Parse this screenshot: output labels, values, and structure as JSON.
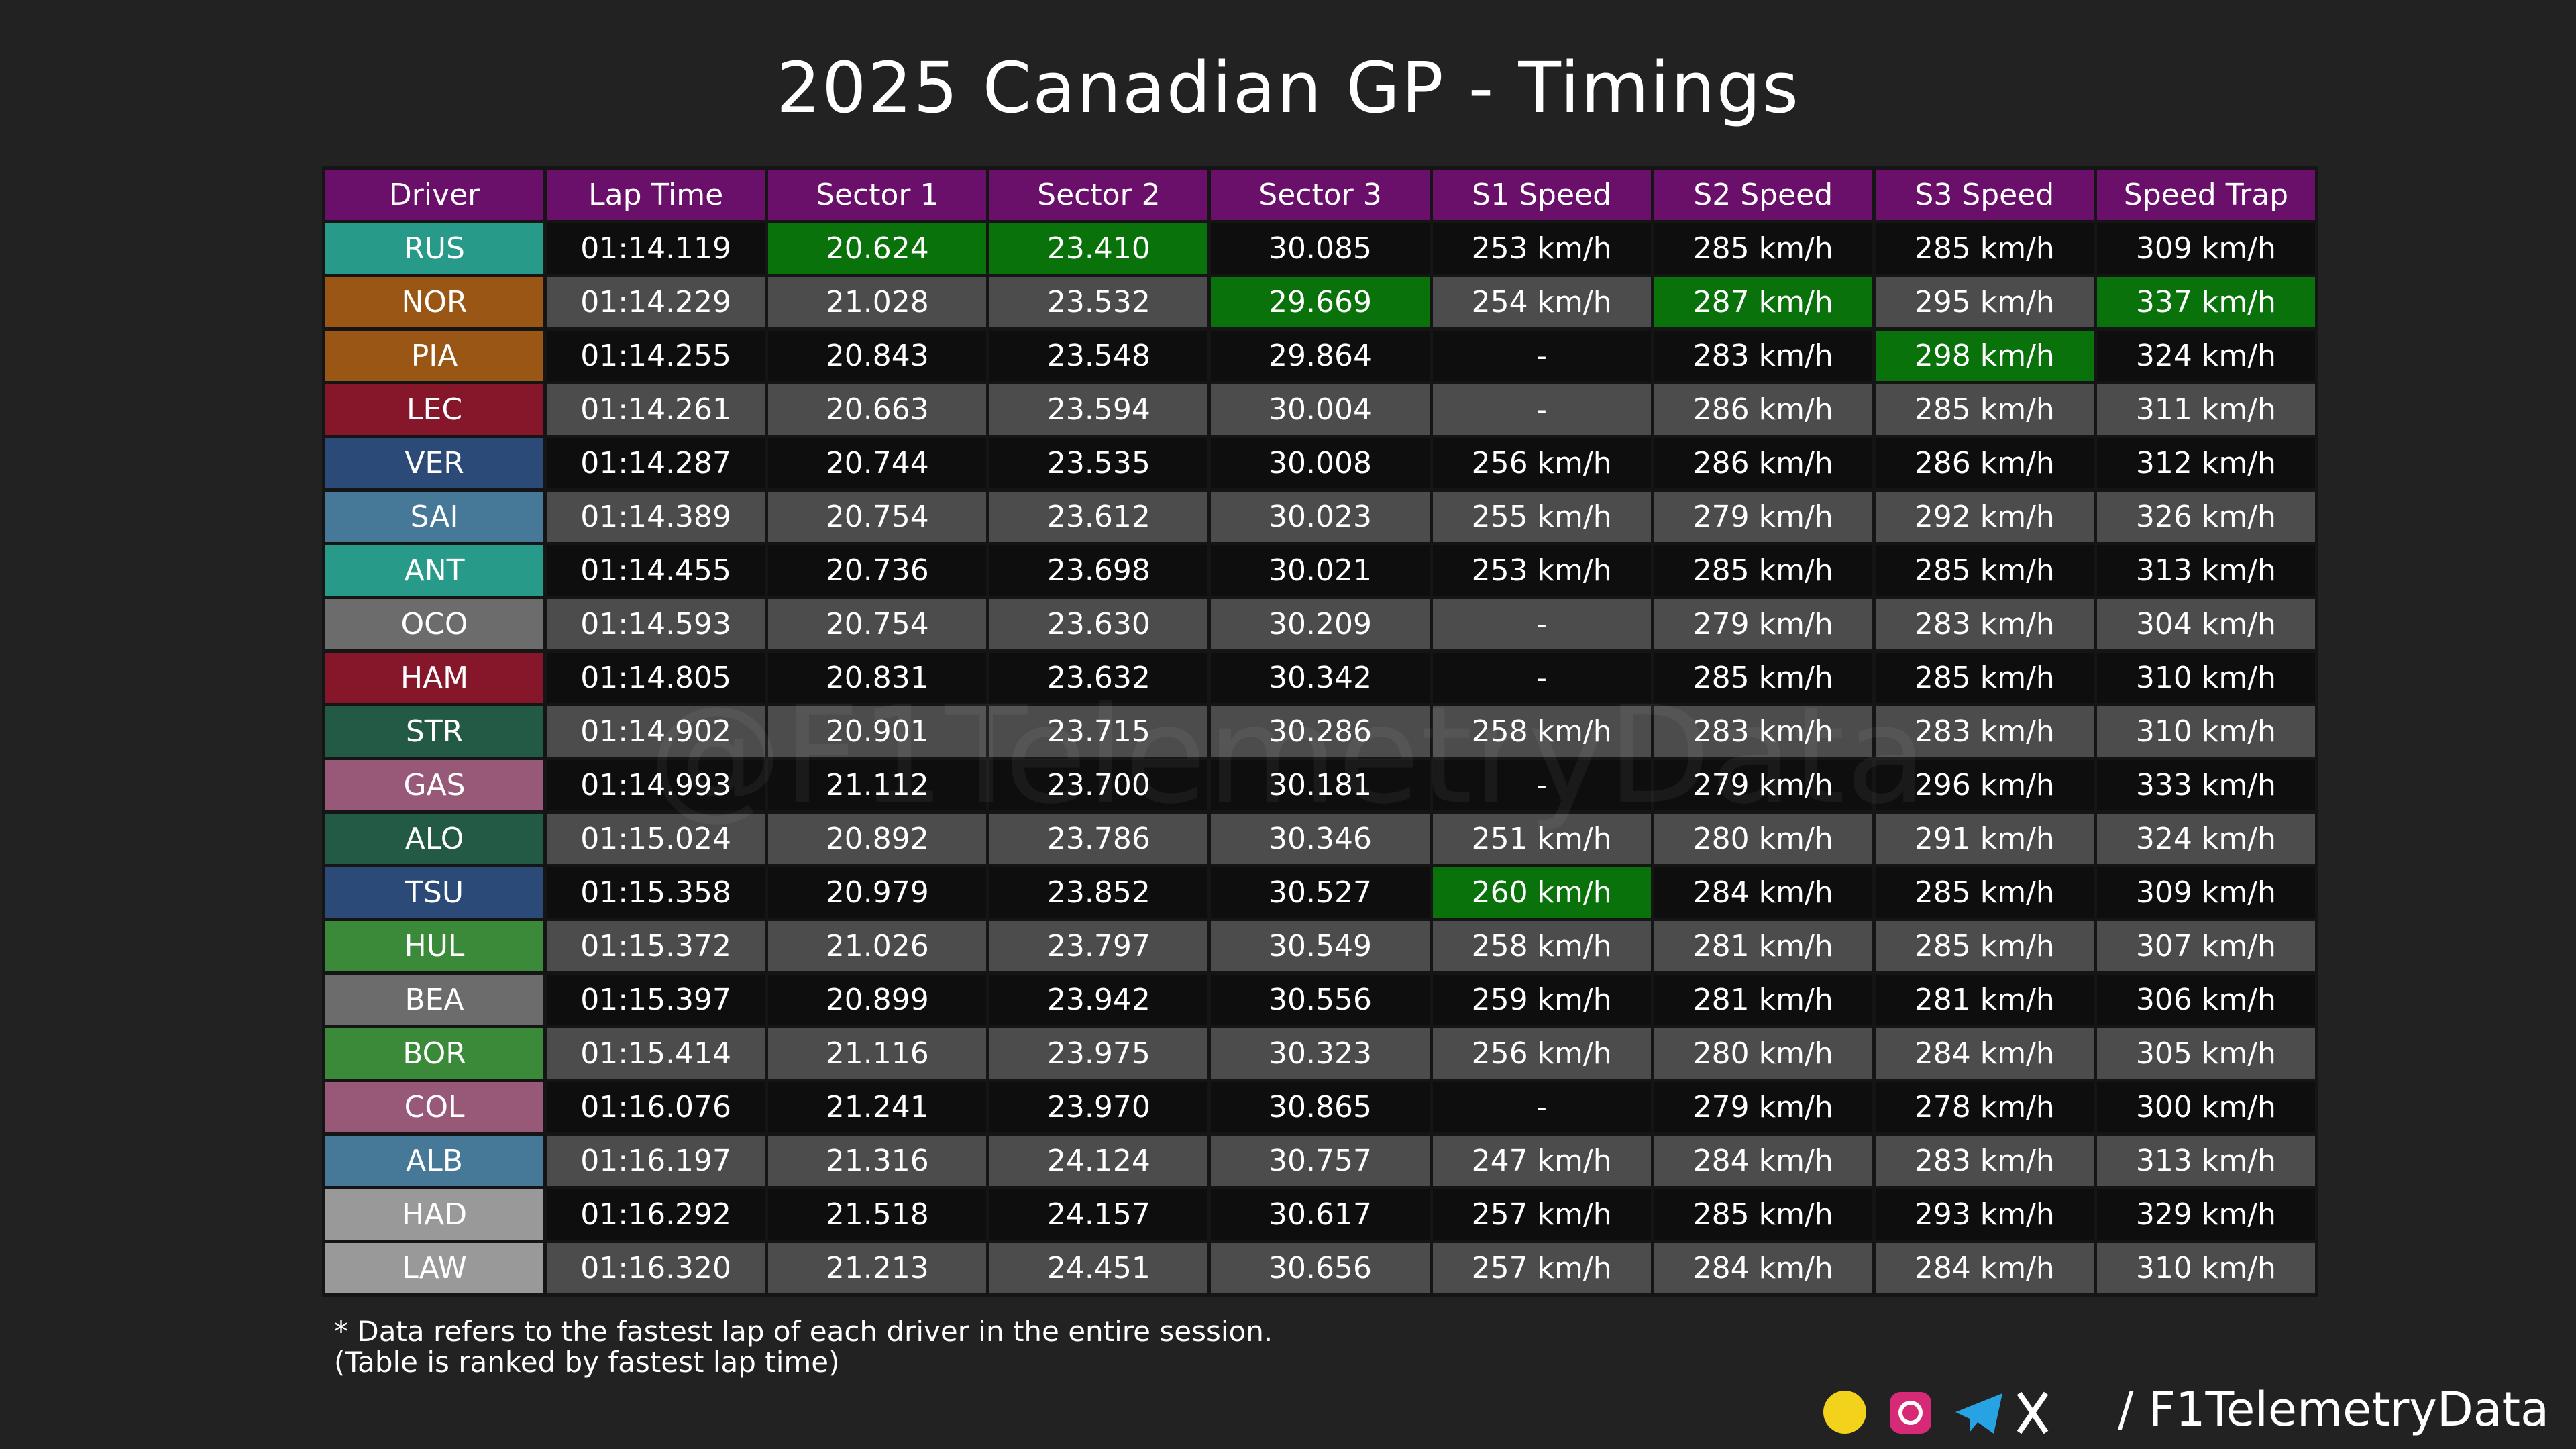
{
  "title": "2025 Canadian GP - Timings",
  "watermark": "@F1TelemetryData",
  "table": {
    "header": [
      "Driver",
      "Lap Time",
      "Sector 1",
      "Sector 2",
      "Sector 3",
      "S1 Speed",
      "S2 Speed",
      "S3 Speed",
      "Speed Trap"
    ],
    "rows": [
      [
        "RUS",
        "01:14.119",
        "20.624",
        "23.410",
        "30.085",
        "253 km/h",
        "285 km/h",
        "285 km/h",
        "309 km/h"
      ],
      [
        "NOR",
        "01:14.229",
        "21.028",
        "23.532",
        "29.669",
        "254 km/h",
        "287 km/h",
        "295 km/h",
        "337 km/h"
      ],
      [
        "PIA",
        "01:14.255",
        "20.843",
        "23.548",
        "29.864",
        "-",
        "283 km/h",
        "298 km/h",
        "324 km/h"
      ],
      [
        "LEC",
        "01:14.261",
        "20.663",
        "23.594",
        "30.004",
        "-",
        "286 km/h",
        "285 km/h",
        "311 km/h"
      ],
      [
        "VER",
        "01:14.287",
        "20.744",
        "23.535",
        "30.008",
        "256 km/h",
        "286 km/h",
        "286 km/h",
        "312 km/h"
      ],
      [
        "SAI",
        "01:14.389",
        "20.754",
        "23.612",
        "30.023",
        "255 km/h",
        "279 km/h",
        "292 km/h",
        "326 km/h"
      ],
      [
        "ANT",
        "01:14.455",
        "20.736",
        "23.698",
        "30.021",
        "253 km/h",
        "285 km/h",
        "285 km/h",
        "313 km/h"
      ],
      [
        "OCO",
        "01:14.593",
        "20.754",
        "23.630",
        "30.209",
        "-",
        "279 km/h",
        "283 km/h",
        "304 km/h"
      ],
      [
        "HAM",
        "01:14.805",
        "20.831",
        "23.632",
        "30.342",
        "-",
        "285 km/h",
        "285 km/h",
        "310 km/h"
      ],
      [
        "STR",
        "01:14.902",
        "20.901",
        "23.715",
        "30.286",
        "258 km/h",
        "283 km/h",
        "283 km/h",
        "310 km/h"
      ],
      [
        "GAS",
        "01:14.993",
        "21.112",
        "23.700",
        "30.181",
        "-",
        "279 km/h",
        "296 km/h",
        "333 km/h"
      ],
      [
        "ALO",
        "01:15.024",
        "20.892",
        "23.786",
        "30.346",
        "251 km/h",
        "280 km/h",
        "291 km/h",
        "324 km/h"
      ],
      [
        "TSU",
        "01:15.358",
        "20.979",
        "23.852",
        "30.527",
        "260 km/h",
        "284 km/h",
        "285 km/h",
        "309 km/h"
      ],
      [
        "HUL",
        "01:15.372",
        "21.026",
        "23.797",
        "30.549",
        "258 km/h",
        "281 km/h",
        "285 km/h",
        "307 km/h"
      ],
      [
        "BEA",
        "01:15.397",
        "20.899",
        "23.942",
        "30.556",
        "259 km/h",
        "281 km/h",
        "281 km/h",
        "306 km/h"
      ],
      [
        "BOR",
        "01:15.414",
        "21.116",
        "23.975",
        "30.323",
        "256 km/h",
        "280 km/h",
        "284 km/h",
        "305 km/h"
      ],
      [
        "COL",
        "01:16.076",
        "21.241",
        "23.970",
        "30.865",
        "-",
        "279 km/h",
        "278 km/h",
        "300 km/h"
      ],
      [
        "ALB",
        "01:16.197",
        "21.316",
        "24.124",
        "30.757",
        "247 km/h",
        "284 km/h",
        "283 km/h",
        "313 km/h"
      ],
      [
        "HAD",
        "01:16.292",
        "21.518",
        "24.157",
        "30.617",
        "257 km/h",
        "285 km/h",
        "293 km/h",
        "329 km/h"
      ],
      [
        "LAW",
        "01:16.320",
        "21.213",
        "24.451",
        "30.656",
        "257 km/h",
        "284 km/h",
        "284 km/h",
        "310 km/h"
      ]
    ],
    "driver_colors": [
      "#289a8a",
      "#9a5614",
      "#9a5614",
      "#86172a",
      "#2c4a78",
      "#467898",
      "#289a8a",
      "#6c6c6c",
      "#86172a",
      "#235a45",
      "#985878",
      "#235a45",
      "#2c4a78",
      "#3a8a3a",
      "#6c6c6c",
      "#3a8a3a",
      "#985878",
      "#467898",
      "#999999",
      "#999999"
    ],
    "highlight_color": "#0a720a",
    "highlights": [
      [
        0,
        2
      ],
      [
        0,
        3
      ],
      [
        1,
        4
      ],
      [
        1,
        6
      ],
      [
        1,
        8
      ],
      [
        2,
        7
      ],
      [
        12,
        5
      ]
    ]
  },
  "footnotes": [
    "* Data refers to the fastest lap of each driver in the entire session.",
    "(Table is ranked by fastest lap time)"
  ],
  "handle": "/ F1TelemetryData"
}
